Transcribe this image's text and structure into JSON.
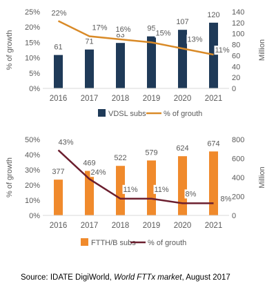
{
  "chart_data": [
    {
      "type": "bar",
      "categories": [
        "2016",
        "2017",
        "2018",
        "2019",
        "2020",
        "2021"
      ],
      "series": [
        {
          "name": "VDSL subs",
          "kind": "bar",
          "axis": "right",
          "color": "#1f3a58",
          "values": [
            61,
            71,
            83,
            95,
            107,
            120
          ]
        },
        {
          "name": "% of grouth",
          "kind": "line",
          "axis": "left",
          "color": "#d98a27",
          "values": [
            22,
            17,
            16,
            15,
            13,
            11
          ]
        }
      ],
      "bar_labels": [
        "61",
        "71",
        "83",
        "95",
        "107",
        "120"
      ],
      "line_labels": [
        "22%",
        "17%",
        "16%",
        "15%",
        "13%",
        "11%"
      ],
      "ylabel_left": "% of growth",
      "ylabel_right": "Million",
      "ylim_left": [
        0,
        25
      ],
      "ylim_right": [
        0,
        140
      ],
      "yticks_left": [
        "0%",
        "5%",
        "10%",
        "15%",
        "20%",
        "25%"
      ],
      "yticks_right": [
        "0",
        "20",
        "40",
        "60",
        "80",
        "100",
        "120",
        "140"
      ],
      "legend_position": "bottom",
      "grid": false
    },
    {
      "type": "bar",
      "categories": [
        "2016",
        "2017",
        "2018",
        "2019",
        "2020",
        "2021"
      ],
      "series": [
        {
          "name": "FTTH/B subs",
          "kind": "bar",
          "axis": "right",
          "color": "#f08a2c",
          "values": [
            377,
            469,
            522,
            579,
            624,
            674
          ]
        },
        {
          "name": "% of grouth",
          "kind": "line",
          "axis": "left",
          "color": "#6b1e2e",
          "values": [
            43,
            24,
            11,
            11,
            8,
            8
          ]
        }
      ],
      "bar_labels": [
        "377",
        "469",
        "522",
        "579",
        "624",
        "674"
      ],
      "line_labels": [
        "43%",
        "24%",
        "11%",
        "11%",
        "8%",
        "8%"
      ],
      "ylabel_left": "% of growth",
      "ylabel_right": "Million",
      "ylim_left": [
        0,
        50
      ],
      "ylim_right": [
        0,
        800
      ],
      "yticks_left": [
        "0%",
        "10%",
        "20%",
        "30%",
        "40%",
        "50%"
      ],
      "yticks_right": [
        "0",
        "200",
        "400",
        "600",
        "800"
      ],
      "legend_position": "bottom",
      "grid": false
    }
  ],
  "source": {
    "prefix": "Source: IDATE DigiWorld, ",
    "publication": "World FTTx market",
    "suffix": ", August 2017"
  }
}
